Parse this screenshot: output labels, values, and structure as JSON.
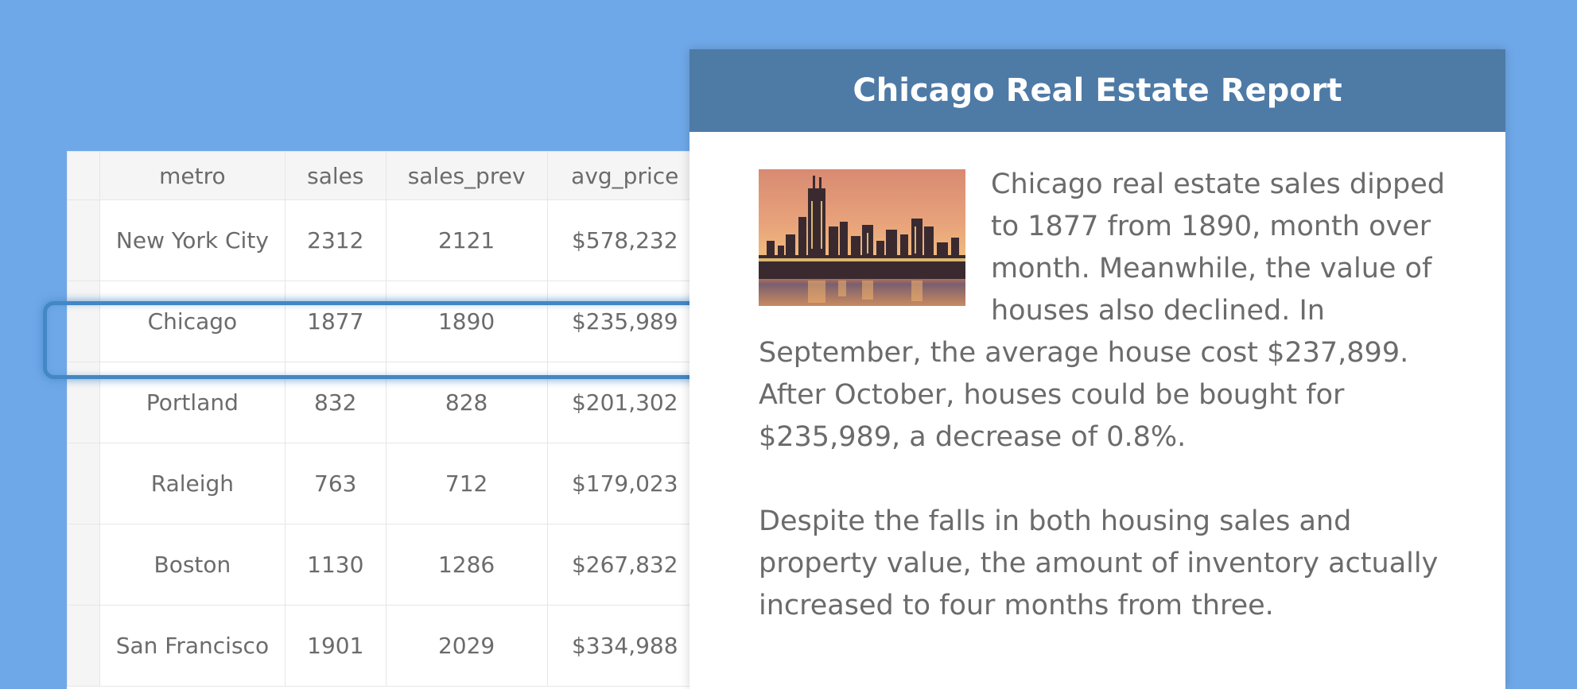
{
  "table": {
    "columns": [
      "metro",
      "sales",
      "sales_prev",
      "avg_price"
    ],
    "rows": [
      {
        "metro": "New York City",
        "sales": "2312",
        "sales_prev": "2121",
        "avg_price": "$578,232"
      },
      {
        "metro": "Chicago",
        "sales": "1877",
        "sales_prev": "1890",
        "avg_price": "$235,989"
      },
      {
        "metro": "Portland",
        "sales": "832",
        "sales_prev": "828",
        "avg_price": "$201,302"
      },
      {
        "metro": "Raleigh",
        "sales": "763",
        "sales_prev": "712",
        "avg_price": "$179,023"
      },
      {
        "metro": "Boston",
        "sales": "1130",
        "sales_prev": "1286",
        "avg_price": "$267,832"
      },
      {
        "metro": "San Francisco",
        "sales": "1901",
        "sales_prev": "2029",
        "avg_price": "$334,988"
      }
    ],
    "highlighted_row": "Chicago"
  },
  "report": {
    "title": "Chicago Real Estate Report",
    "paragraphs": [
      "Chicago real estate sales dipped to 1877 from 1890, month over month. Meanwhile, the value of houses also declined. In September, the average house cost $237,899. After October, houses could be bought for $235,989, a decrease of 0.8%.",
      "Despite the falls in both housing sales and property value, the amount of inventory actually increased to four months from three."
    ]
  },
  "colors": {
    "background": "#6fa8e9",
    "header": "#4e7aa6",
    "highlight": "#4387c4",
    "text": "#6b6b6b"
  }
}
